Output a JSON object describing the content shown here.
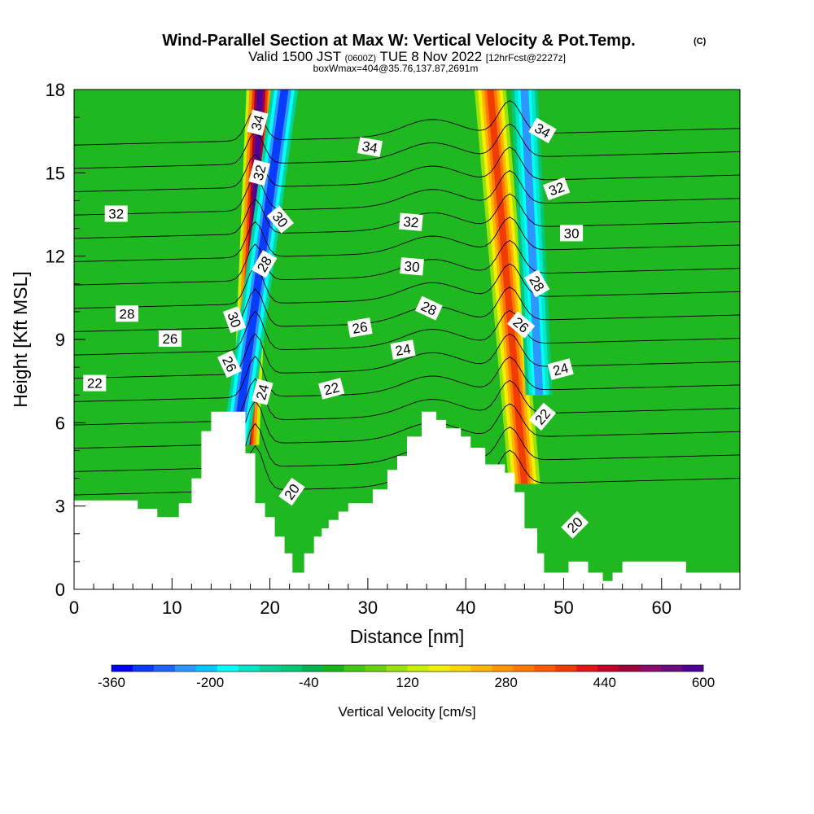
{
  "chart_data": {
    "type": "heatmap",
    "title": "Wind-Parallel Section at Max W: Vertical Velocity & Pot.Temp.",
    "title_mark": "(C)",
    "subtitle_parts": [
      "Valid 1500 JST",
      "(0600Z)",
      "TUE 8 Nov 2022",
      "[12hrFcst@2227z]"
    ],
    "subtitle2": "boxWmax=404@35.76,137.87,2691m",
    "xlabel": "Distance [nm]",
    "ylabel": "Height [Kft MSL]",
    "xlim": [
      0,
      68
    ],
    "ylim": [
      0,
      18
    ],
    "x_ticks": [
      "0",
      "10",
      "20",
      "30",
      "40",
      "50",
      "60"
    ],
    "x_tick_values": [
      0,
      10,
      20,
      30,
      40,
      50,
      60
    ],
    "y_ticks": [
      "0",
      "3",
      "6",
      "9",
      "12",
      "15",
      "18"
    ],
    "y_tick_values": [
      0,
      3,
      6,
      9,
      12,
      15,
      18
    ],
    "colorbar": {
      "label": "Vertical Velocity [cm/s]",
      "range": [
        -360,
        600
      ],
      "ticks": [
        "-360",
        "-200",
        "-40",
        "120",
        "280",
        "440",
        "600"
      ],
      "tick_values": [
        -360,
        -200,
        -40,
        120,
        280,
        440,
        600
      ],
      "colors": [
        "#0000ff",
        "#0a3cff",
        "#1e64ff",
        "#2d96ff",
        "#00c8ff",
        "#00ffff",
        "#00e6c8",
        "#00d29b",
        "#00c878",
        "#00b450",
        "#19b419",
        "#41c814",
        "#69d20f",
        "#9be10a",
        "#c8f000",
        "#f0f000",
        "#ffd700",
        "#ffb400",
        "#ff9600",
        "#ff7800",
        "#ff5a00",
        "#f03c00",
        "#e61414",
        "#c80028",
        "#a0003c",
        "#8c0a6e",
        "#6e0a82",
        "#500096"
      ]
    },
    "terrain": [
      {
        "x": 0,
        "h": 3.2
      },
      {
        "x": 6.5,
        "h": 3.2
      },
      {
        "x": 6.5,
        "h": 2.9
      },
      {
        "x": 8.5,
        "h": 2.9
      },
      {
        "x": 8.5,
        "h": 2.6
      },
      {
        "x": 10.7,
        "h": 2.6
      },
      {
        "x": 10.7,
        "h": 3.1
      },
      {
        "x": 12.0,
        "h": 3.1
      },
      {
        "x": 12.0,
        "h": 4.0
      },
      {
        "x": 13.0,
        "h": 4.0
      },
      {
        "x": 13.0,
        "h": 5.7
      },
      {
        "x": 14.0,
        "h": 5.7
      },
      {
        "x": 14.0,
        "h": 6.4
      },
      {
        "x": 17.5,
        "h": 6.4
      },
      {
        "x": 17.5,
        "h": 4.9
      },
      {
        "x": 18.5,
        "h": 4.9
      },
      {
        "x": 18.5,
        "h": 3.1
      },
      {
        "x": 19.5,
        "h": 3.1
      },
      {
        "x": 19.5,
        "h": 2.6
      },
      {
        "x": 20.5,
        "h": 2.6
      },
      {
        "x": 20.5,
        "h": 1.9
      },
      {
        "x": 21.5,
        "h": 1.9
      },
      {
        "x": 21.5,
        "h": 1.3
      },
      {
        "x": 22.3,
        "h": 1.3
      },
      {
        "x": 22.3,
        "h": 0.6
      },
      {
        "x": 23.5,
        "h": 0.6
      },
      {
        "x": 23.5,
        "h": 1.3
      },
      {
        "x": 24.5,
        "h": 1.3
      },
      {
        "x": 24.5,
        "h": 1.9
      },
      {
        "x": 25.3,
        "h": 1.9
      },
      {
        "x": 25.3,
        "h": 2.2
      },
      {
        "x": 26.0,
        "h": 2.2
      },
      {
        "x": 26.0,
        "h": 2.5
      },
      {
        "x": 27.0,
        "h": 2.5
      },
      {
        "x": 27.0,
        "h": 2.8
      },
      {
        "x": 28.0,
        "h": 2.8
      },
      {
        "x": 28.0,
        "h": 3.1
      },
      {
        "x": 30.5,
        "h": 3.1
      },
      {
        "x": 30.5,
        "h": 3.6
      },
      {
        "x": 32.0,
        "h": 3.6
      },
      {
        "x": 32.0,
        "h": 4.3
      },
      {
        "x": 33.0,
        "h": 4.3
      },
      {
        "x": 33.0,
        "h": 4.8
      },
      {
        "x": 34.0,
        "h": 4.8
      },
      {
        "x": 34.0,
        "h": 5.5
      },
      {
        "x": 35.5,
        "h": 5.5
      },
      {
        "x": 35.5,
        "h": 6.4
      },
      {
        "x": 37.0,
        "h": 6.4
      },
      {
        "x": 37.0,
        "h": 6.1
      },
      {
        "x": 38.0,
        "h": 6.1
      },
      {
        "x": 38.0,
        "h": 5.8
      },
      {
        "x": 39.5,
        "h": 5.8
      },
      {
        "x": 39.5,
        "h": 5.5
      },
      {
        "x": 40.5,
        "h": 5.5
      },
      {
        "x": 40.5,
        "h": 5.1
      },
      {
        "x": 42.0,
        "h": 5.1
      },
      {
        "x": 42.0,
        "h": 4.5
      },
      {
        "x": 44.0,
        "h": 4.5
      },
      {
        "x": 44.0,
        "h": 4.2
      },
      {
        "x": 45.0,
        "h": 4.2
      },
      {
        "x": 45.0,
        "h": 3.5
      },
      {
        "x": 46.0,
        "h": 3.5
      },
      {
        "x": 46.0,
        "h": 2.2
      },
      {
        "x": 47.3,
        "h": 2.2
      },
      {
        "x": 47.3,
        "h": 1.3
      },
      {
        "x": 48.0,
        "h": 1.3
      },
      {
        "x": 48.0,
        "h": 0.6
      },
      {
        "x": 50.5,
        "h": 0.6
      },
      {
        "x": 50.5,
        "h": 1.0
      },
      {
        "x": 52.5,
        "h": 1.0
      },
      {
        "x": 52.5,
        "h": 0.6
      },
      {
        "x": 54.0,
        "h": 0.6
      },
      {
        "x": 54.0,
        "h": 0.3
      },
      {
        "x": 55.0,
        "h": 0.3
      },
      {
        "x": 55.0,
        "h": 0.6
      },
      {
        "x": 56.0,
        "h": 0.6
      },
      {
        "x": 56.0,
        "h": 1.0
      },
      {
        "x": 62.5,
        "h": 1.0
      },
      {
        "x": 62.5,
        "h": 0.6
      },
      {
        "x": 68,
        "h": 0.6
      }
    ],
    "w_features": [
      {
        "kind": "updraft",
        "base_x": 17.5,
        "top_x": 19.0,
        "y0": 5.2,
        "y1": 18,
        "peak": 600
      },
      {
        "kind": "downdraft",
        "base_x": 16.5,
        "top_x": 21.5,
        "y0": 5.2,
        "y1": 18,
        "peak": -300
      },
      {
        "kind": "updraft",
        "base_x": 46.0,
        "top_x": 42.5,
        "y0": 3.8,
        "y1": 18,
        "peak": 360
      },
      {
        "kind": "downdraft",
        "base_x": 47.5,
        "top_x": 46.0,
        "y0": 7.0,
        "y1": 18,
        "peak": -230
      }
    ],
    "theta_contour_levels": [
      20,
      21,
      22,
      23,
      24,
      25,
      26,
      27,
      28,
      29,
      30,
      31,
      32,
      33,
      34,
      35
    ],
    "theta_contour_labels": [
      {
        "text": "34",
        "x": 18.8,
        "y": 16.8,
        "angle": -75
      },
      {
        "text": "32",
        "x": 19.0,
        "y": 15.0,
        "angle": -75
      },
      {
        "text": "30",
        "x": 21.0,
        "y": 13.3,
        "angle": 50
      },
      {
        "text": "28",
        "x": 19.5,
        "y": 11.7,
        "angle": -60
      },
      {
        "text": "30",
        "x": 16.3,
        "y": 9.7,
        "angle": 70
      },
      {
        "text": "26",
        "x": 15.8,
        "y": 8.1,
        "angle": 65
      },
      {
        "text": "24",
        "x": 19.3,
        "y": 7.1,
        "angle": -75
      },
      {
        "text": "20",
        "x": 22.3,
        "y": 3.5,
        "angle": -55
      },
      {
        "text": "22",
        "x": 26.3,
        "y": 7.2,
        "angle": -15
      },
      {
        "text": "34",
        "x": 30.2,
        "y": 15.9,
        "angle": 10
      },
      {
        "text": "32",
        "x": 34.4,
        "y": 13.2,
        "angle": 5
      },
      {
        "text": "30",
        "x": 34.5,
        "y": 11.6,
        "angle": 5
      },
      {
        "text": "28",
        "x": 36.2,
        "y": 10.1,
        "angle": 25
      },
      {
        "text": "26",
        "x": 29.2,
        "y": 9.4,
        "angle": -10
      },
      {
        "text": "24",
        "x": 33.6,
        "y": 8.6,
        "angle": -10
      },
      {
        "text": "22",
        "x": 2.1,
        "y": 7.4,
        "angle": 0
      },
      {
        "text": "26",
        "x": 9.8,
        "y": 9.0,
        "angle": 0
      },
      {
        "text": "28",
        "x": 5.4,
        "y": 9.9,
        "angle": 0
      },
      {
        "text": "32",
        "x": 4.3,
        "y": 13.5,
        "angle": 0
      },
      {
        "text": "34",
        "x": 47.8,
        "y": 16.5,
        "angle": 30
      },
      {
        "text": "32",
        "x": 49.3,
        "y": 14.4,
        "angle": -20
      },
      {
        "text": "30",
        "x": 50.8,
        "y": 12.8,
        "angle": 0
      },
      {
        "text": "28",
        "x": 47.2,
        "y": 11.0,
        "angle": 60
      },
      {
        "text": "26",
        "x": 45.6,
        "y": 9.5,
        "angle": 40
      },
      {
        "text": "24",
        "x": 49.7,
        "y": 7.9,
        "angle": -15
      },
      {
        "text": "22",
        "x": 47.9,
        "y": 6.2,
        "angle": -50
      },
      {
        "text": "20",
        "x": 51.2,
        "y": 2.3,
        "angle": -45
      }
    ]
  }
}
